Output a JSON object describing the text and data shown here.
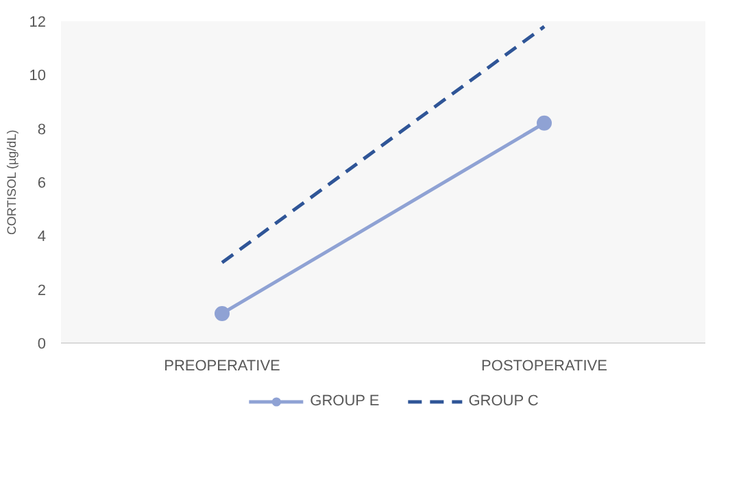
{
  "chart_data": {
    "type": "line",
    "ylabel": "CORTISOL (µg/dL)",
    "categories": [
      "PREOPERATIVE",
      "POSTOPERATIVE"
    ],
    "series": [
      {
        "name": "GROUP E",
        "color": "#8fa2d4",
        "values": [
          1.1,
          8.2
        ],
        "marker": "circle",
        "line_style": "solid"
      },
      {
        "name": "GROUP C",
        "color": "#2f5597",
        "values": [
          3.0,
          11.8
        ],
        "marker": "none",
        "line_style": "dashed"
      }
    ],
    "ylim": [
      0,
      12
    ],
    "yticks": [
      0,
      2,
      4,
      6,
      8,
      10,
      12
    ],
    "grid": false,
    "legend": "bottom"
  }
}
